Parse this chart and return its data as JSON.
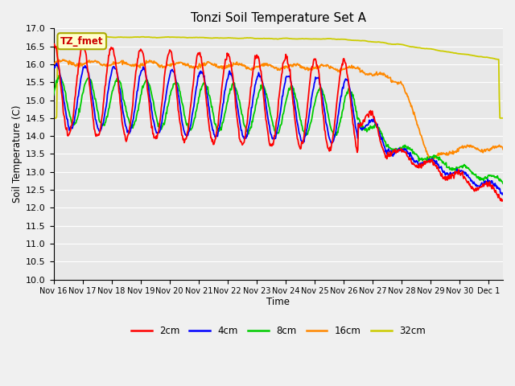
{
  "title": "Tonzi Soil Temperature Set A",
  "xlabel": "Time",
  "ylabel": "Soil Temperature (C)",
  "ylim": [
    10.0,
    17.0
  ],
  "yticks": [
    10.0,
    10.5,
    11.0,
    11.5,
    12.0,
    12.5,
    13.0,
    13.5,
    14.0,
    14.5,
    15.0,
    15.5,
    16.0,
    16.5,
    17.0
  ],
  "xtick_labels": [
    "Nov 16",
    "Nov 17",
    "Nov 18",
    "Nov 19",
    "Nov 20",
    "Nov 21",
    "Nov 22",
    "Nov 23",
    "Nov 24",
    "Nov 25",
    "Nov 26",
    "Nov 27",
    "Nov 28",
    "Nov 29",
    "Nov 30",
    "Dec 1"
  ],
  "colors": {
    "2cm": "#ff0000",
    "4cm": "#0000ff",
    "8cm": "#00cc00",
    "16cm": "#ff8800",
    "32cm": "#cccc00"
  },
  "legend_label": "TZ_fmet",
  "legend_bg": "#ffffcc",
  "legend_border": "#aaaa00",
  "fig_bg": "#f0f0f0",
  "plot_bg": "#e8e8e8",
  "grid_color": "#ffffff"
}
